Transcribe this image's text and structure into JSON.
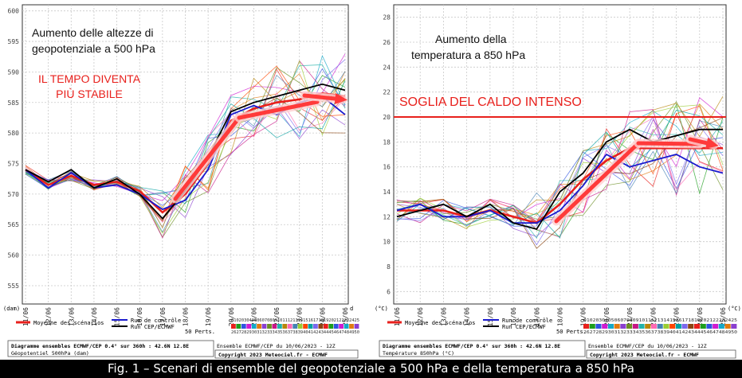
{
  "caption": "Fig. 1 – Scenari di ensemble del geopotenziale a 500 hPa e della temperatura a 850 hPa",
  "dates": [
    "11/06",
    "12/06",
    "13/06",
    "14/06",
    "15/06",
    "16/06",
    "17/06",
    "18/06",
    "19/06",
    "20/06",
    "21/06",
    "22/06",
    "23/06",
    "24/06",
    "25/06"
  ],
  "legend": {
    "mean": "Moyenne des scénarios",
    "control": "Run de contrôle",
    "oper": "Run CEP/ECMWF",
    "perts": "50 Perts.",
    "row1": "01020304050607080910111213141516171819202122232425",
    "row2": "26272829303132333435363738394041424344454647484950"
  },
  "colors": {
    "mean": "#e8201c",
    "control": "#1a1acd",
    "oper": "#000000",
    "arrow": "#ff3a3a",
    "threshold": "#e8201c"
  },
  "chart_data": [
    {
      "type": "line",
      "title": "",
      "annotations": [
        "Aumento delle altezze di",
        "geopotenziale a 500 hPa",
        "IL TEMPO DIVENTA",
        "PIÙ STABILE"
      ],
      "unit_left": "(dam)",
      "unit_right": "d",
      "yticks": [
        555,
        560,
        565,
        570,
        575,
        580,
        585,
        590,
        595,
        600
      ],
      "ylim": [
        552,
        601
      ],
      "footer_line1": "Diagramme ensembles ECMWF/CEP 0.4° sur 360h : 42.6N 12.8E",
      "footer_line2": "Géopotentiel 500hPa (dam)",
      "footer_mid": "Ensemble ECMWF/CEP du 10/06/2023 - 12Z",
      "footer_copy": "Copyright 2023 Meteociel.fr - ECMWF",
      "series": [
        {
          "name": "Moyenne des scénarios",
          "values": [
            574,
            571.5,
            573,
            571.5,
            572,
            570.5,
            567,
            570,
            575,
            582,
            584,
            585,
            585.5,
            586.5,
            586
          ]
        },
        {
          "name": "Run de contrôle",
          "values": [
            574,
            571,
            573.5,
            571,
            571.5,
            570,
            567.5,
            569,
            574,
            583,
            584.5,
            583,
            585,
            586,
            583
          ]
        },
        {
          "name": "Run CEP/ECMWF",
          "values": [
            574,
            572,
            574,
            571,
            572.5,
            570,
            566,
            570.5,
            576,
            583.5,
            585,
            586,
            587,
            588,
            587
          ]
        }
      ]
    },
    {
      "type": "line",
      "title": "",
      "annotations": [
        "Aumento della",
        "temperatura a 850 hPa",
        "SOGLIA DEL CALDO INTENSO"
      ],
      "unit_left": "(°C)",
      "unit_right": "(°C)",
      "yticks": [
        6,
        8,
        10,
        12,
        14,
        16,
        18,
        20,
        22,
        24,
        26,
        28
      ],
      "ylim": [
        5,
        29
      ],
      "threshold": 20,
      "footer_line1": "Diagramme ensembles ECMWF/CEP 0.4° sur 360h : 42.6N 12.8E",
      "footer_line2": "Température 850hPa (°C)",
      "footer_mid": "Ensemble ECMWF/CEP du 10/06/2023 - 12Z",
      "footer_copy": "Copyright 2023 Meteociel.fr - ECMWF",
      "series": [
        {
          "name": "Moyenne des scénarios",
          "values": [
            12.5,
            12.5,
            12.5,
            12,
            12.5,
            12,
            11.5,
            13,
            15,
            16.5,
            17.5,
            17.5,
            17.5,
            17.5,
            17.5
          ]
        },
        {
          "name": "Run de contrôle",
          "values": [
            12.5,
            13,
            12,
            12,
            12.5,
            11.5,
            11.5,
            12.5,
            14.5,
            17,
            16,
            16.5,
            17,
            16,
            15.5
          ]
        },
        {
          "name": "Run CEP/ECMWF",
          "values": [
            12,
            12.5,
            13,
            12,
            13,
            11.5,
            11,
            14,
            15.5,
            18,
            19,
            18,
            18.5,
            19,
            19
          ]
        }
      ]
    }
  ]
}
